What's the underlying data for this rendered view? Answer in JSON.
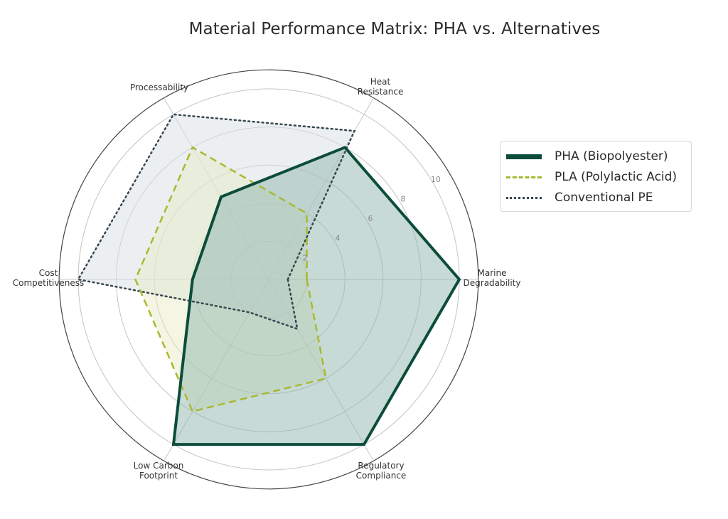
{
  "chart_data": {
    "type": "radar",
    "title": "Material Performance Matrix: PHA vs. Alternatives",
    "axes": [
      "Marine Degradability",
      "Heat Resistance",
      "Processability",
      "Cost Competitiveness",
      "Low Carbon Footprint",
      "Regulatory Compliance"
    ],
    "axis_label_lines": [
      [
        "Marine",
        "Degradability"
      ],
      [
        "Heat",
        "Resistance"
      ],
      [
        "Processability"
      ],
      [
        "Cost",
        "Competitiveness"
      ],
      [
        "Low Carbon",
        "Footprint"
      ],
      [
        "Regulatory",
        "Compliance"
      ]
    ],
    "radial_ticks": [
      2,
      4,
      6,
      8,
      10
    ],
    "rlim": [
      0,
      11
    ],
    "series": [
      {
        "name": "PHA (Biopolyester)",
        "values": [
          10,
          8,
          5,
          4,
          10,
          10
        ],
        "line": "solid",
        "color": "#0b4d3a",
        "fill": "#8fb5ad",
        "fill_opacity": 0.5,
        "width": 4
      },
      {
        "name": "PLA (Polylactic Acid)",
        "values": [
          2,
          4,
          8,
          7,
          8,
          6
        ],
        "line": "dashed",
        "color": "#a9b92f",
        "fill": "#e6ecc0",
        "fill_opacity": 0.45,
        "width": 2.5
      },
      {
        "name": "Conventional PE",
        "values": [
          1,
          9,
          10,
          10,
          2,
          3
        ],
        "line": "dotted",
        "color": "#37474f",
        "fill": "#d9e0e5",
        "fill_opacity": 0.5,
        "width": 2.5
      }
    ],
    "legend_position": "right",
    "grid": true
  }
}
